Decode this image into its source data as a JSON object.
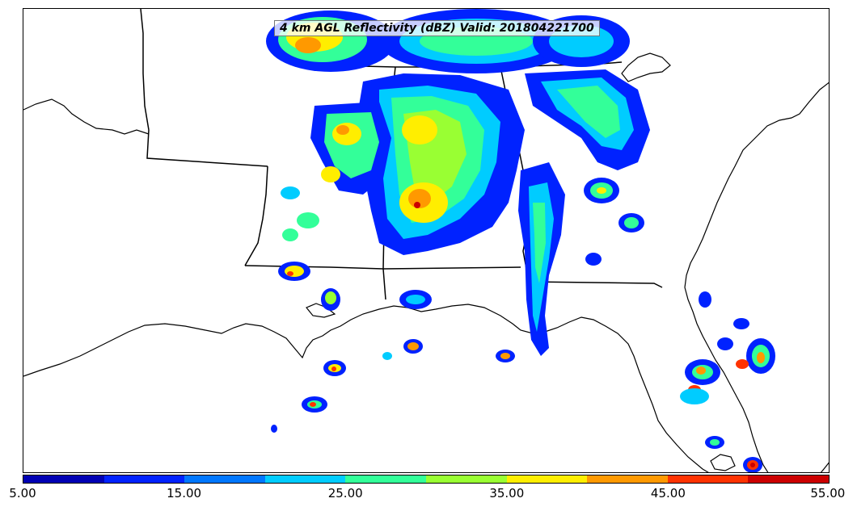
{
  "map": {
    "title": "4 km AGL Reflectivity (dBZ) Valid: 201804221700",
    "product": "reflectivity",
    "units": "dBZ",
    "region": "southeastern United States",
    "colorbar": {
      "min": 5.0,
      "max": 55.0,
      "step": 5,
      "colors": [
        "#0000b4",
        "#0022ff",
        "#0077ff",
        "#00ccff",
        "#33ff99",
        "#99ff33",
        "#ffee00",
        "#ff9900",
        "#ff3300",
        "#cc0000"
      ],
      "tick_labels": [
        "5.00",
        "15.00",
        "25.00",
        "35.00",
        "45.00",
        "55.00"
      ]
    },
    "boundary_color": "#000000"
  }
}
